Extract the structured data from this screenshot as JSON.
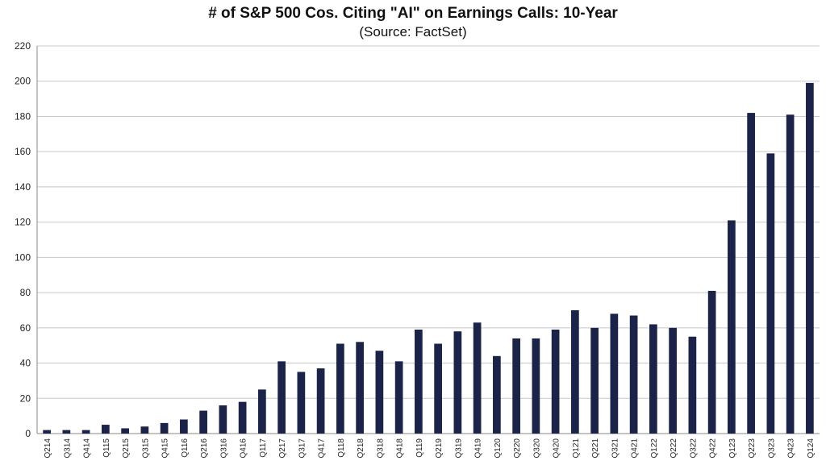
{
  "chart_data": {
    "type": "bar",
    "title": "# of S&P 500 Cos. Citing \"AI\" on Earnings Calls: 10-Year",
    "subtitle": "(Source: FactSet)",
    "xlabel": "",
    "ylabel": "",
    "ylim": [
      0,
      220
    ],
    "yticks": [
      "0",
      "20",
      "40",
      "60",
      "80",
      "100",
      "120",
      "140",
      "160",
      "180",
      "200",
      "220"
    ],
    "grid": true,
    "bar_color": "#1b2448",
    "categories": [
      "Q214",
      "Q314",
      "Q414",
      "Q115",
      "Q215",
      "Q315",
      "Q415",
      "Q116",
      "Q216",
      "Q316",
      "Q416",
      "Q117",
      "Q217",
      "Q317",
      "Q417",
      "Q118",
      "Q218",
      "Q318",
      "Q418",
      "Q119",
      "Q219",
      "Q319",
      "Q419",
      "Q120",
      "Q220",
      "Q320",
      "Q420",
      "Q121",
      "Q221",
      "Q321",
      "Q421",
      "Q122",
      "Q222",
      "Q322",
      "Q422",
      "Q123",
      "Q223",
      "Q323",
      "Q423",
      "Q124"
    ],
    "values": [
      2,
      2,
      2,
      5,
      3,
      4,
      6,
      8,
      13,
      16,
      18,
      25,
      41,
      35,
      37,
      51,
      52,
      47,
      41,
      59,
      51,
      58,
      63,
      44,
      54,
      54,
      59,
      70,
      60,
      68,
      67,
      62,
      60,
      55,
      81,
      121,
      182,
      159,
      181,
      199
    ]
  }
}
